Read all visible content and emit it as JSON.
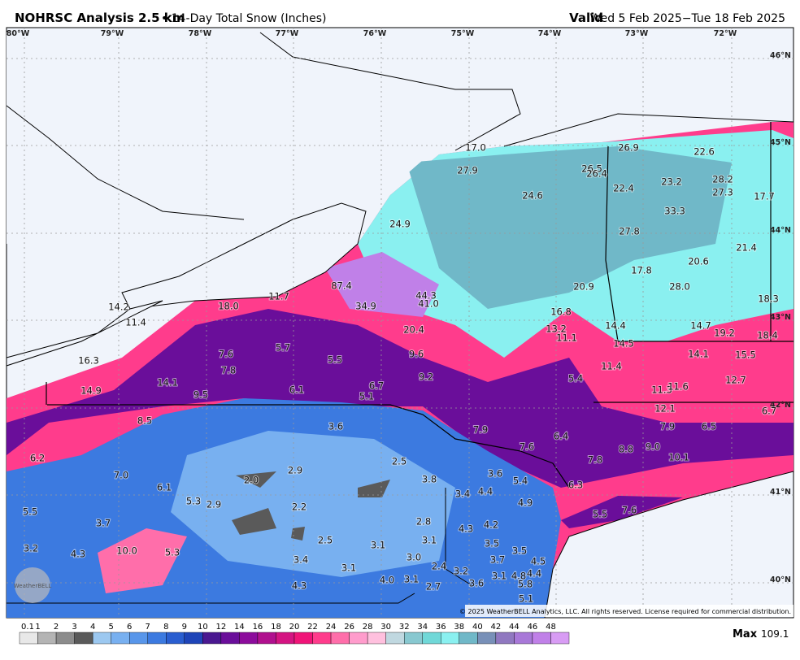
{
  "header": {
    "title": "NOHRSC Analysis 2.5 km",
    "subtitle": "• 14-Day Total Snow (Inches)",
    "valid_label": "Valid",
    "valid_range": "Wed 5 Feb 2025−Tue 18 Feb 2025"
  },
  "longitudes": [
    "80°W",
    "79°W",
    "78°W",
    "77°W",
    "76°W",
    "75°W",
    "74°W",
    "73°W",
    "72°W"
  ],
  "latitudes": [
    "46°N",
    "45°N",
    "44°N",
    "43°N",
    "42°N",
    "41°N",
    "40°N"
  ],
  "spot_values": [
    "17.0",
    "26.9",
    "22.6",
    "27.9",
    "26.5",
    "26.4",
    "28.2",
    "23.2",
    "22.4",
    "27.3",
    "24.6",
    "17.7",
    "33.3",
    "24.9",
    "27.8",
    "21.4",
    "20.6",
    "17.8",
    "28.0",
    "20.9",
    "87.4",
    "11.7",
    "44.3",
    "41.0",
    "34.9",
    "18.0",
    "18.3",
    "16.8",
    "14.2",
    "11.4",
    "14.4",
    "14.7",
    "19.2",
    "18.4",
    "13.2",
    "20.4",
    "11.1",
    "14.5",
    "5.7",
    "7.6",
    "9.6",
    "14.1",
    "15.5",
    "5.5",
    "16.3",
    "11.4",
    "7.8",
    "9.2",
    "5.4",
    "12.7",
    "14.1",
    "6.7",
    "11.3",
    "11.6",
    "6.1",
    "14.9",
    "9.5",
    "5.1",
    "12.1",
    "6.7",
    "8.5",
    "3.6",
    "7.9",
    "7.9",
    "6.5",
    "6.4",
    "7.6",
    "8.8",
    "9.0",
    "10.1",
    "6.2",
    "7.8",
    "2.5",
    "2.9",
    "7.0",
    "3.6",
    "2.0",
    "3.8",
    "5.4",
    "6.1",
    "6.3",
    "3.4",
    "4.4",
    "5.3",
    "2.9",
    "4.9",
    "2.2",
    "5.5",
    "5.5",
    "7.6",
    "3.7",
    "2.8",
    "4.2",
    "4.3",
    "2.5",
    "3.1",
    "3.1",
    "3.5",
    "3.2",
    "10.0",
    "5.3",
    "4.3",
    "3.5",
    "3.0",
    "3.4",
    "3.7",
    "4.5",
    "2.4",
    "3.1",
    "3.2",
    "4.8",
    "4.4",
    "4.0",
    "3.1",
    "3.6",
    "3.1",
    "5.8",
    "4.3",
    "2.7",
    "5.1"
  ],
  "copyright": "© 2025 WeatherBELL Analytics, LLC. All rights reserved. License required for commercial distribution.",
  "logo": "WeatherBELL",
  "legend": {
    "ticks": [
      "0.1",
      "1",
      "2",
      "3",
      "4",
      "5",
      "6",
      "7",
      "8",
      "9",
      "10",
      "12",
      "14",
      "16",
      "18",
      "20",
      "22",
      "24",
      "26",
      "28",
      "30",
      "32",
      "34",
      "36",
      "38",
      "40",
      "42",
      "44",
      "46",
      "48"
    ],
    "colors": [
      "#e8e8e8",
      "#b4b4b4",
      "#8c8c8c",
      "#5a5a5a",
      "#9cc8f0",
      "#78b0f0",
      "#5896ea",
      "#3c7ae0",
      "#2a5ed0",
      "#1e44b8",
      "#4a1890",
      "#6a0e9a",
      "#8c0c9c",
      "#b0108e",
      "#d41482",
      "#f01478",
      "#ff3c8c",
      "#ff6eaa",
      "#ff9ccc",
      "#ffc0de",
      "#c0d8e0",
      "#88c8d0",
      "#70d8d8",
      "#8af0f0",
      "#70b8c8",
      "#7890b8",
      "#9078c0",
      "#a878d8",
      "#c080e8",
      "#d89cf4"
    ]
  },
  "max_label": "Max",
  "max_value": "109.1"
}
